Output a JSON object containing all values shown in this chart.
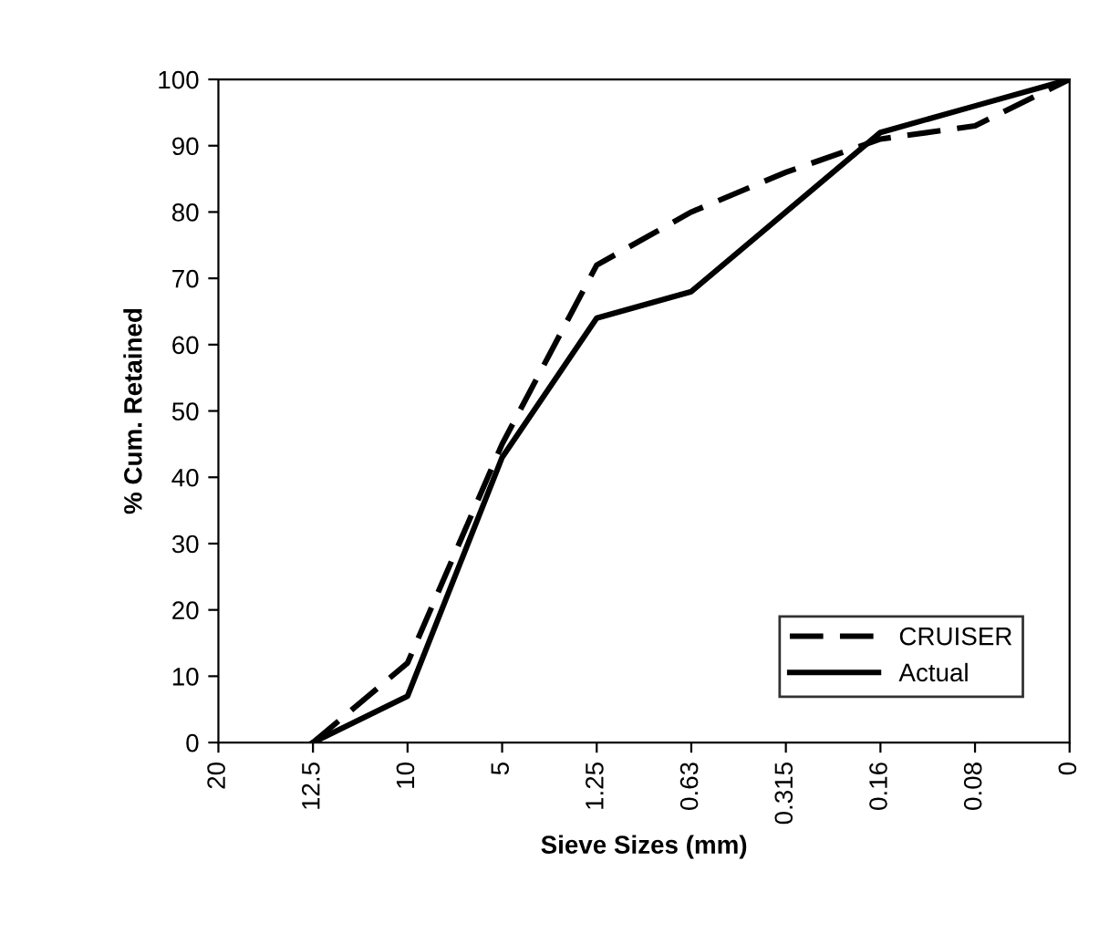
{
  "chart_data": {
    "type": "line",
    "xlabel": "Sieve Sizes (mm)",
    "ylabel": "% Cum. Retained",
    "categories": [
      "20",
      "12.5",
      "10",
      "5",
      "1.25",
      "0.63",
      "0.315",
      "0.16",
      "0.08",
      "0"
    ],
    "series": [
      {
        "name": "CRUISER",
        "color": "#000000",
        "line_style": "dashed",
        "values": [
          null,
          0,
          12,
          45,
          72,
          80,
          86,
          91,
          93,
          100
        ]
      },
      {
        "name": "Actual",
        "color": "#000000",
        "line_style": "solid",
        "values": [
          null,
          0,
          7,
          43,
          64,
          68,
          80,
          92,
          96,
          100
        ]
      }
    ],
    "ylim": [
      0,
      100
    ],
    "yticks": [
      0,
      10,
      20,
      30,
      40,
      50,
      60,
      70,
      80,
      90,
      100
    ],
    "grid": false,
    "legend": "bottom right",
    "marker": "none"
  }
}
